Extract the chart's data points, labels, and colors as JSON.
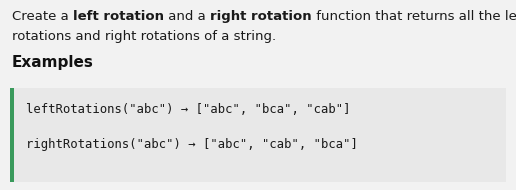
{
  "bg_color": "#f2f2f2",
  "code_bg_color": "#e8e8e8",
  "border_color": "#3a9a5c",
  "title_line1_parts": [
    {
      "text": "Create a ",
      "bold": false,
      "color": "#1a1a1a"
    },
    {
      "text": "left rotation",
      "bold": true,
      "color": "#1a1a1a"
    },
    {
      "text": " and a ",
      "bold": false,
      "color": "#1a1a1a"
    },
    {
      "text": "right rotation",
      "bold": true,
      "color": "#1a1a1a"
    },
    {
      "text": " function that returns all the left",
      "bold": false,
      "color": "#1a1a1a"
    }
  ],
  "title_line2": "rotations and right rotations of a string.",
  "examples_label": "Examples",
  "code_line1": "leftRotations(\"abc\") → [\"abc\", \"bca\", \"cab\"]",
  "code_line2": "rightRotations(\"abc\") → [\"abc\", \"cab\", \"bca\"]",
  "font_size_body": 9.5,
  "font_size_examples": 11.0,
  "font_size_code": 8.8
}
